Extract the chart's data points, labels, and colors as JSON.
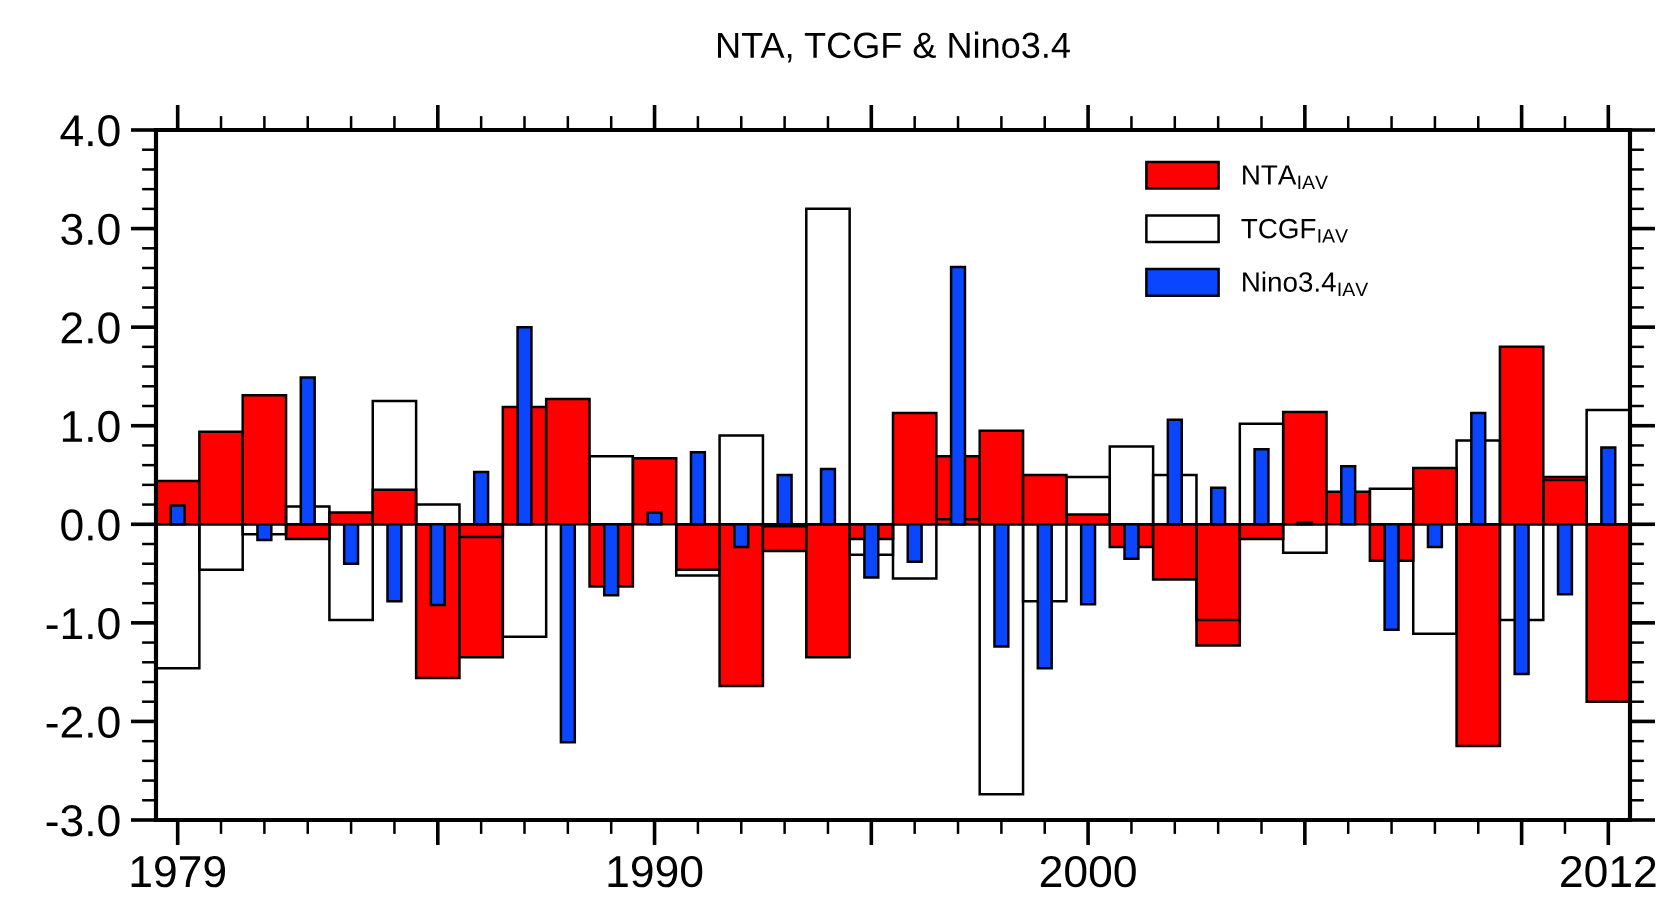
{
  "chart_data": {
    "type": "bar",
    "title": "NTA, TCGF & Nino3.4",
    "x": [
      1979,
      1980,
      1981,
      1982,
      1983,
      1984,
      1985,
      1986,
      1987,
      1988,
      1989,
      1990,
      1991,
      1992,
      1993,
      1994,
      1995,
      1996,
      1997,
      1998,
      1999,
      2000,
      2001,
      2002,
      2003,
      2004,
      2005,
      2006,
      2007,
      2008,
      2009,
      2010,
      2011,
      2012
    ],
    "series": [
      {
        "name": "NTA$_{IAV}$",
        "color": "#ff0000",
        "values": [
          0.44,
          0.94,
          1.31,
          -0.15,
          0.12,
          0.35,
          -1.56,
          -1.35,
          1.19,
          1.27,
          -0.63,
          0.67,
          -0.46,
          -1.64,
          -0.27,
          -1.35,
          -0.15,
          1.13,
          0.69,
          0.95,
          0.5,
          0.1,
          -0.23,
          -0.56,
          -1.23,
          -0.15,
          1.14,
          0.33,
          -0.37,
          0.57,
          -2.25,
          1.8,
          0.48,
          -1.8
        ]
      },
      {
        "name": "TCGF$_{IAV}$",
        "color": "#000000",
        "values": [
          -1.46,
          -0.46,
          -0.1,
          0.18,
          -0.97,
          1.25,
          0.2,
          -0.13,
          -1.14,
          null,
          0.69,
          null,
          -0.52,
          0.9,
          -0.02,
          3.2,
          -0.31,
          -0.55,
          0.05,
          -2.74,
          -0.78,
          0.48,
          0.79,
          0.5,
          -0.97,
          1.02,
          -0.29,
          null,
          0.36,
          -1.11,
          0.85,
          -0.97,
          0.45,
          1.16
        ]
      },
      {
        "name": "Nino3.4$_{IAV}$",
        "color": "#0a46ff",
        "values": [
          0.19,
          null,
          -0.16,
          1.49,
          -0.4,
          -0.78,
          -0.82,
          0.53,
          2.0,
          -2.21,
          -0.72,
          0.12,
          0.73,
          -0.23,
          0.5,
          0.56,
          -0.54,
          -0.38,
          2.61,
          -1.24,
          -1.46,
          -0.81,
          -0.35,
          1.06,
          0.37,
          0.76,
          0.02,
          0.59,
          -1.07,
          -0.23,
          1.13,
          -1.52,
          -0.71,
          0.78
        ]
      }
    ],
    "xlim": [
      1978.5,
      2012.5
    ],
    "xticks": [
      1979,
      {
        "value": 1985,
        "label": null
      },
      1990,
      {
        "value": 1995,
        "label": null
      },
      2000,
      {
        "value": 2005,
        "label": null
      },
      {
        "value": 2010,
        "label": null
      },
      2012
    ],
    "ylim": [
      -3,
      4
    ],
    "yticks": [
      {
        "value": -3,
        "label": "-3.0"
      },
      {
        "value": -2,
        "label": "-2.0"
      },
      {
        "value": -1,
        "label": "-1.0"
      },
      {
        "value": 0,
        "label": "0.0"
      },
      {
        "value": 1,
        "label": "1.0"
      },
      {
        "value": 2,
        "label": "2.0"
      },
      {
        "value": 3,
        "label": "3.0"
      },
      {
        "value": 4,
        "label": "4.0"
      }
    ],
    "legend": "top right",
    "grid": false
  }
}
